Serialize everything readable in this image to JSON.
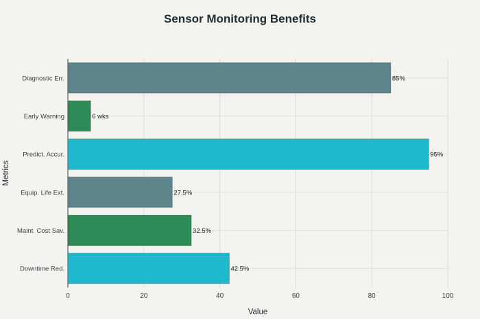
{
  "chart_data": {
    "type": "bar",
    "orientation": "horizontal",
    "title": "Sensor Monitoring Benefits",
    "xlabel": "Value",
    "ylabel": "Metrics",
    "xlim": [
      0,
      100
    ],
    "xticks": [
      0,
      20,
      40,
      60,
      80,
      100
    ],
    "grid": true,
    "categories": [
      "Diagnostic Err.",
      "Early Warning",
      "Predict. Accur.",
      "Equip. Life Ext.",
      "Maint. Cost Sav.",
      "Downtime Red."
    ],
    "values": [
      85,
      6,
      95,
      27.5,
      32.5,
      42.5
    ],
    "data_labels": [
      "85%",
      "6 wks",
      "95%",
      "27.5%",
      "32.5%",
      "42.5%"
    ],
    "colors": [
      "#5e858b",
      "#2e8b57",
      "#1fb8cd",
      "#5e858b",
      "#2e8b57",
      "#1fb8cd"
    ]
  }
}
